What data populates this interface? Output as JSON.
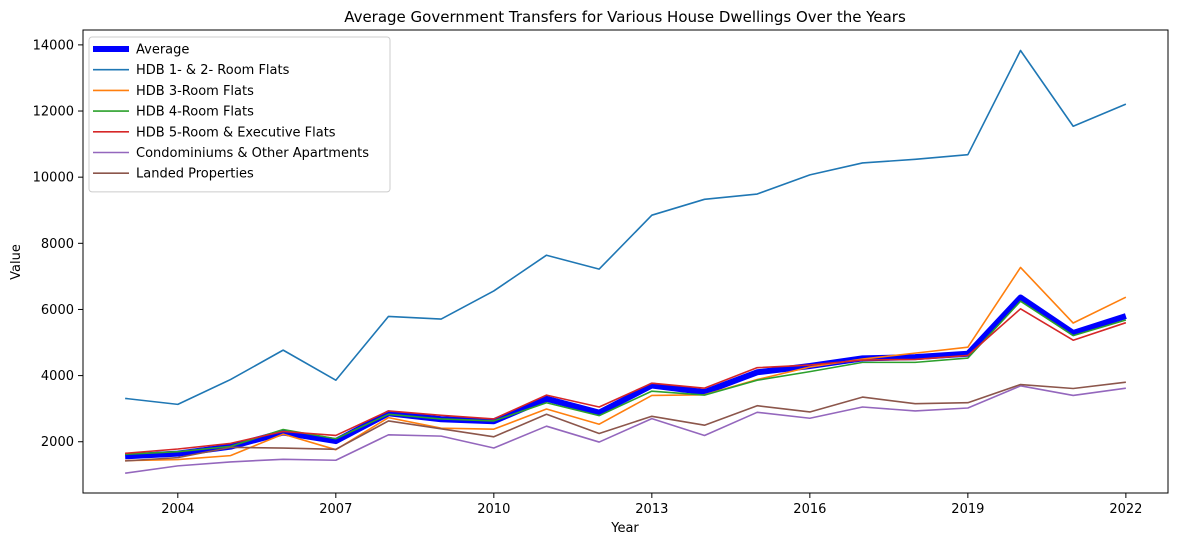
{
  "chart_data": {
    "type": "line",
    "title": "Average Government Transfers for Various House Dwellings Over the Years",
    "xlabel": "Year",
    "ylabel": "Value",
    "xlim": [
      2002.2,
      2022.8
    ],
    "ylim": [
      450,
      14450
    ],
    "x_ticks": [
      "2004",
      "2007",
      "2010",
      "2013",
      "2016",
      "2019",
      "2022"
    ],
    "y_ticks": [
      "2000",
      "4000",
      "6000",
      "8000",
      "10000",
      "12000",
      "14000"
    ],
    "grid": false,
    "legend_position": "top-left",
    "x": [
      2003,
      2004,
      2005,
      2006,
      2007,
      2008,
      2009,
      2010,
      2011,
      2012,
      2013,
      2014,
      2015,
      2016,
      2017,
      2018,
      2019,
      2020,
      2021,
      2022
    ],
    "series": [
      {
        "name": "Average",
        "color": "#0000ff",
        "emphasis": true,
        "values": [
          1560,
          1640,
          1850,
          2280,
          2020,
          2860,
          2680,
          2620,
          3300,
          2880,
          3700,
          3500,
          4100,
          4290,
          4520,
          4560,
          4660,
          6360,
          5290,
          5800
        ]
      },
      {
        "name": "HDB 1- & 2- Room Flats",
        "color": "#1f77b4",
        "values": [
          3310,
          3130,
          3880,
          4770,
          3860,
          5790,
          5710,
          6560,
          7640,
          7220,
          8850,
          9330,
          9490,
          10070,
          10430,
          10540,
          10680,
          13830,
          11540,
          12210
        ]
      },
      {
        "name": "HDB 3-Room Flats",
        "color": "#ff7f0e",
        "values": [
          1430,
          1460,
          1580,
          2230,
          1760,
          2730,
          2410,
          2380,
          2990,
          2530,
          3400,
          3420,
          3880,
          4260,
          4500,
          4680,
          4860,
          7270,
          5590,
          6370
        ]
      },
      {
        "name": "HDB 4-Room Flats",
        "color": "#2ca02c",
        "values": [
          1620,
          1700,
          1860,
          2370,
          2090,
          2830,
          2690,
          2630,
          3180,
          2790,
          3530,
          3410,
          3860,
          4120,
          4400,
          4400,
          4530,
          6250,
          5210,
          5680
        ]
      },
      {
        "name": "HDB 5-Room & Executive Flats",
        "color": "#d62728",
        "values": [
          1650,
          1780,
          1950,
          2310,
          2190,
          2930,
          2800,
          2690,
          3410,
          3050,
          3770,
          3620,
          4240,
          4320,
          4470,
          4490,
          4610,
          6020,
          5070,
          5600
        ]
      },
      {
        "name": "Condominiums & Other Apartments",
        "color": "#9467bd",
        "values": [
          1050,
          1270,
          1390,
          1470,
          1440,
          2210,
          2170,
          1810,
          2470,
          1990,
          2700,
          2190,
          2890,
          2710,
          3050,
          2930,
          3020,
          3690,
          3400,
          3620
        ]
      },
      {
        "name": "Landed Properties",
        "color": "#8c564b",
        "values": [
          1420,
          1520,
          1830,
          1810,
          1770,
          2630,
          2390,
          2150,
          2830,
          2250,
          2770,
          2500,
          3090,
          2900,
          3350,
          3150,
          3180,
          3730,
          3610,
          3800
        ]
      }
    ]
  }
}
